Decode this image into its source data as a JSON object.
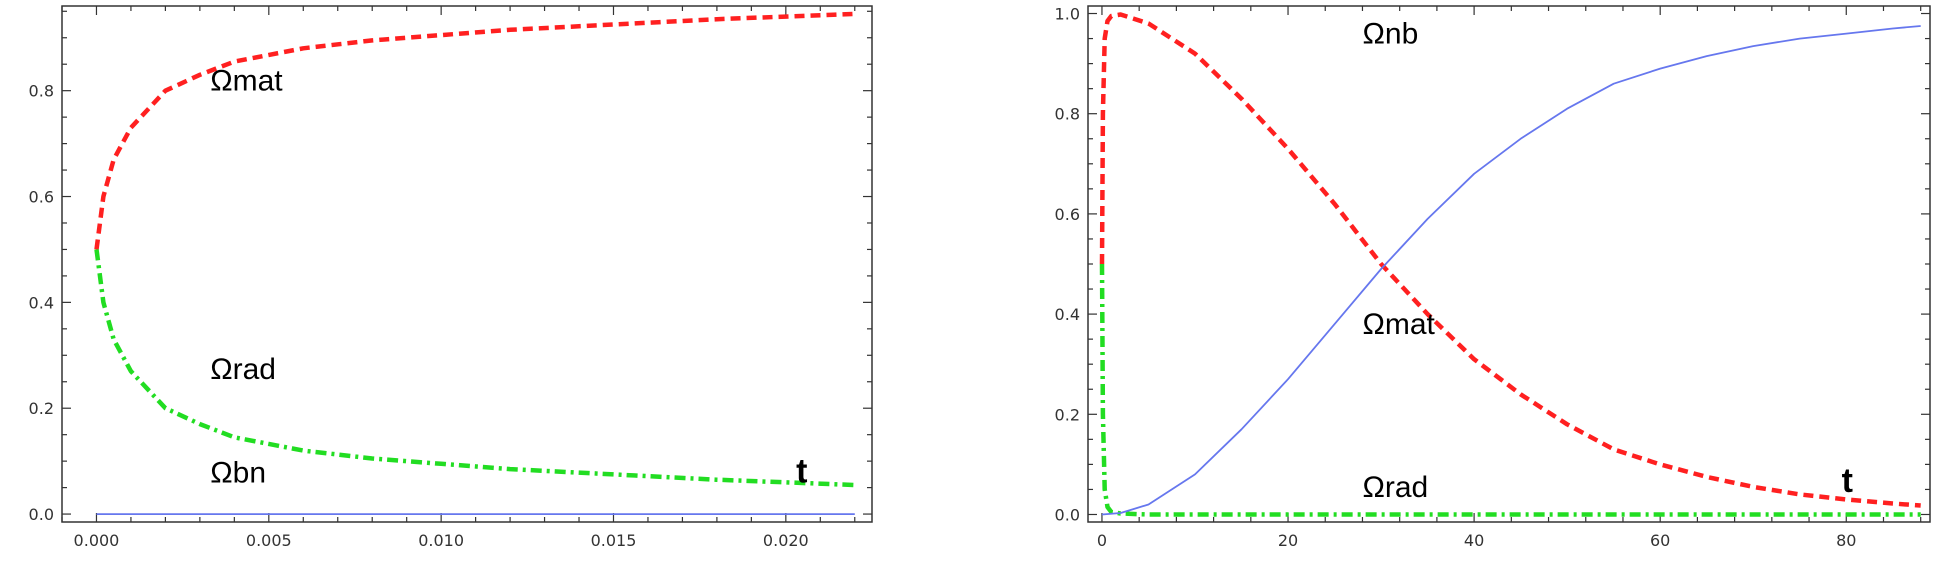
{
  "chart_data": [
    {
      "type": "line",
      "title": "",
      "xlabel": "",
      "ylabel": "",
      "xlim": [
        -0.001,
        0.0225
      ],
      "ylim": [
        -0.015,
        0.96
      ],
      "grid": false,
      "xticks": [
        0.0,
        0.005,
        0.01,
        0.015,
        0.02
      ],
      "xtick_labels": [
        "0.000",
        "0.005",
        "0.010",
        "0.015",
        "0.020"
      ],
      "yticks": [
        0.0,
        0.2,
        0.4,
        0.6,
        0.8
      ],
      "ytick_labels": [
        "0.0",
        "0.2",
        "0.4",
        "0.6",
        "0.8"
      ],
      "series": [
        {
          "name": "Ωmat",
          "color": "#ff2020",
          "style": "dashed",
          "x": [
            0.0,
            0.0002,
            0.0005,
            0.001,
            0.002,
            0.003,
            0.004,
            0.006,
            0.008,
            0.01,
            0.012,
            0.015,
            0.018,
            0.022
          ],
          "y": [
            0.5,
            0.6,
            0.67,
            0.73,
            0.8,
            0.83,
            0.855,
            0.88,
            0.895,
            0.905,
            0.915,
            0.925,
            0.935,
            0.945
          ]
        },
        {
          "name": "Ωrad",
          "color": "#22dd22",
          "style": "dashdot",
          "x": [
            0.0,
            0.0002,
            0.0005,
            0.001,
            0.002,
            0.003,
            0.004,
            0.006,
            0.008,
            0.01,
            0.012,
            0.015,
            0.018,
            0.022
          ],
          "y": [
            0.5,
            0.4,
            0.33,
            0.27,
            0.2,
            0.17,
            0.145,
            0.12,
            0.105,
            0.095,
            0.085,
            0.075,
            0.065,
            0.055
          ]
        },
        {
          "name": "Ωbn",
          "color": "#6677ee",
          "style": "solid",
          "x": [
            0.0,
            0.022
          ],
          "y": [
            0.0,
            0.0
          ]
        }
      ],
      "annotations": [
        {
          "text": "Ωmat",
          "x": 0.0033,
          "y": 0.8
        },
        {
          "text": "Ωrad",
          "x": 0.0033,
          "y": 0.255
        },
        {
          "text": "Ωbn",
          "x": 0.0033,
          "y": 0.06
        },
        {
          "text": "t",
          "x": 0.0203,
          "y": 0.06
        }
      ]
    },
    {
      "type": "line",
      "title": "",
      "xlabel": "",
      "ylabel": "",
      "xlim": [
        -1.5,
        89
      ],
      "ylim": [
        -0.015,
        1.015
      ],
      "grid": false,
      "xticks": [
        0,
        20,
        40,
        60,
        80
      ],
      "xtick_labels": [
        "0",
        "20",
        "40",
        "60",
        "80"
      ],
      "yticks": [
        0.0,
        0.2,
        0.4,
        0.6,
        0.8,
        1.0
      ],
      "ytick_labels": [
        "0.0",
        "0.2",
        "0.4",
        "0.6",
        "0.8",
        "1.0"
      ],
      "series": [
        {
          "name": "Ωmat",
          "color": "#ff2020",
          "style": "dashed",
          "x": [
            0.0,
            0.1,
            0.3,
            0.6,
            1,
            2,
            5,
            10,
            15,
            20,
            25,
            30,
            35,
            40,
            45,
            50,
            55,
            60,
            65,
            70,
            75,
            80,
            85,
            88
          ],
          "y": [
            0.5,
            0.8,
            0.95,
            0.985,
            0.995,
            0.998,
            0.98,
            0.92,
            0.83,
            0.73,
            0.62,
            0.5,
            0.4,
            0.31,
            0.24,
            0.18,
            0.13,
            0.1,
            0.075,
            0.055,
            0.04,
            0.03,
            0.022,
            0.018
          ]
        },
        {
          "name": "Ωrad",
          "color": "#22dd22",
          "style": "dashdot",
          "x": [
            0.0,
            0.1,
            0.3,
            0.6,
            1,
            2,
            5,
            10,
            88
          ],
          "y": [
            0.5,
            0.2,
            0.05,
            0.015,
            0.005,
            0.002,
            0.0,
            0.0,
            0.0
          ]
        },
        {
          "name": "Ωnb",
          "color": "#6677ee",
          "style": "solid",
          "x": [
            0,
            2,
            5,
            10,
            15,
            20,
            25,
            30,
            35,
            40,
            45,
            50,
            55,
            60,
            65,
            70,
            75,
            80,
            85,
            88
          ],
          "y": [
            0.0,
            0.003,
            0.02,
            0.08,
            0.17,
            0.27,
            0.38,
            0.49,
            0.59,
            0.68,
            0.75,
            0.81,
            0.86,
            0.89,
            0.915,
            0.935,
            0.95,
            0.96,
            0.97,
            0.975
          ]
        }
      ],
      "annotations": [
        {
          "text": "Ωnb",
          "x": 28,
          "y": 0.94
        },
        {
          "text": "Ωmat",
          "x": 28,
          "y": 0.36
        },
        {
          "text": "Ωrad",
          "x": 28,
          "y": 0.035
        },
        {
          "text": "t",
          "x": 79.5,
          "y": 0.045
        }
      ]
    }
  ]
}
